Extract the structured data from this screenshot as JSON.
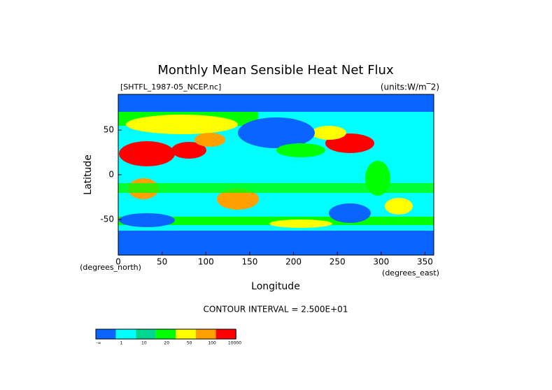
{
  "chart_data": {
    "type": "map",
    "title": "Monthly Mean Sensible Heat Net Flux",
    "subtitle": "[SHTFL_1987-05_NCEP.nc]",
    "units": "(units:W/m‾2)",
    "x_label": "Longitude",
    "y_label": "Latitude",
    "x_unit_label": "(degrees_east)",
    "y_unit_label": "(degrees_north)",
    "annotation": "CONTOUR INTERVAL = 2.500E+01",
    "xlim": [
      0,
      360
    ],
    "xticks": [
      0,
      50,
      100,
      150,
      200,
      250,
      300,
      350
    ],
    "ylim": [
      -90,
      90
    ],
    "yticks": [
      -50,
      0,
      50
    ],
    "colorbar": {
      "labels": [
        "-∞",
        "1",
        "10",
        "20",
        "50",
        "100",
        "10000"
      ],
      "colors": [
        "#0a64ff",
        "#00ffff",
        "#00d890",
        "#00ff00",
        "#ffff00",
        "#ffa000",
        "#ff0000"
      ]
    }
  }
}
